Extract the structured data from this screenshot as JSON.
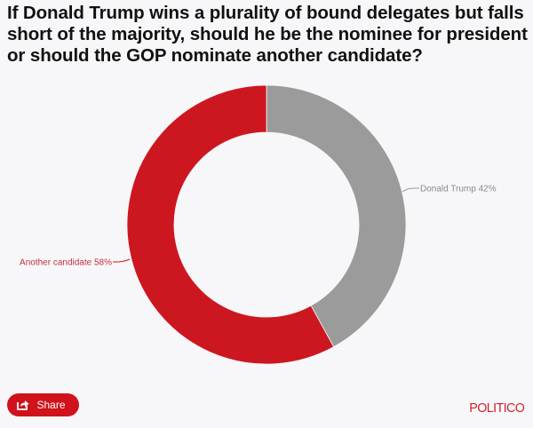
{
  "title": "If Donald Trump wins a plurality of bound delegates but falls short of the majority, should he be the nominee for president or should the GOP nominate another candidate?",
  "chart_data": {
    "type": "pie",
    "variant": "donut",
    "title": "If Donald Trump wins a plurality of bound delegates but falls short of the majority, should he be the nominee for president or should the GOP nominate another candidate?",
    "categories": [
      "Donald Trump",
      "Another candidate"
    ],
    "values": [
      42,
      58
    ],
    "unit": "%",
    "colors": [
      "#9b9b9b",
      "#cd1720"
    ],
    "labels": [
      "Donald Trump 42%",
      "Another candidate 58%"
    ],
    "legend": "none (data labels with leader lines)"
  },
  "labels": {
    "trump": "Donald Trump 42%",
    "other": "Another candidate 58%"
  },
  "footer": {
    "share_label": "Share",
    "share_icon": "share-icon",
    "logo": "POLITICO"
  },
  "colors": {
    "accent": "#cd1720",
    "gray": "#9b9b9b",
    "background": "#f7f7f9"
  }
}
